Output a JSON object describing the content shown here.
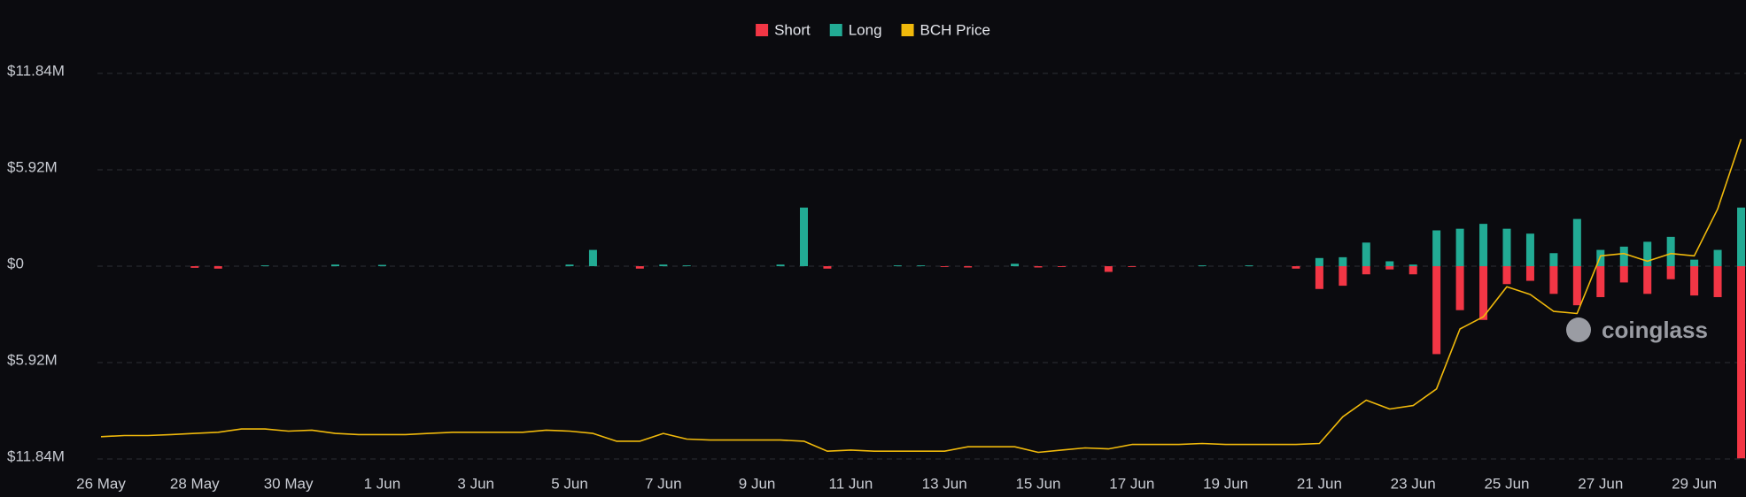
{
  "chart_data": {
    "type": "bar",
    "watermark": "coinglass",
    "categories": [
      "26 May",
      null,
      null,
      null,
      "28 May",
      null,
      null,
      null,
      "30 May",
      null,
      null,
      null,
      "1 Jun",
      null,
      null,
      null,
      "3 Jun",
      null,
      null,
      null,
      "5 Jun",
      null,
      null,
      null,
      "7 Jun",
      null,
      null,
      null,
      "9 Jun",
      null,
      null,
      null,
      "11 Jun",
      null,
      null,
      null,
      "13 Jun",
      null,
      null,
      null,
      "15 Jun",
      null,
      null,
      null,
      "17 Jun",
      null,
      null,
      null,
      "19 Jun",
      null,
      null,
      null,
      "21 Jun",
      null,
      null,
      null,
      "23 Jun",
      null,
      null,
      null,
      "25 Jun",
      null,
      null,
      null,
      "27 Jun",
      null,
      null,
      null,
      "29 Jun",
      null,
      null
    ],
    "series": [
      {
        "name": "Short",
        "color": "#f23645",
        "values": [
          0,
          0,
          0,
          0,
          -0.1,
          -0.15,
          0,
          0,
          0,
          0,
          0,
          0,
          0,
          0,
          0,
          0,
          0,
          0,
          0,
          0,
          0,
          0,
          0,
          -0.15,
          0,
          0,
          0,
          0,
          0,
          0,
          0,
          -0.15,
          0,
          0,
          0,
          0,
          -0.05,
          -0.08,
          0,
          0,
          -0.08,
          -0.05,
          0,
          -0.35,
          -0.05,
          0,
          0,
          0,
          0,
          0,
          0,
          -0.15,
          -1.4,
          -1.2,
          -0.5,
          -0.2,
          -0.5,
          -5.4,
          -2.7,
          -3.3,
          -1.1,
          -0.9,
          -1.7,
          -2.4,
          -1.9,
          -1.0,
          -1.7,
          -0.8,
          -1.8,
          -1.9,
          -11.8
        ]
      },
      {
        "name": "Long",
        "color": "#22ab94",
        "values": [
          0,
          0,
          0,
          0,
          0,
          0,
          0,
          0.05,
          0,
          0,
          0.1,
          0,
          0.08,
          0,
          0,
          0,
          0,
          0,
          0,
          0,
          0.1,
          1.0,
          0,
          0,
          0.1,
          0.05,
          0,
          0,
          0,
          0.1,
          3.6,
          0,
          0,
          0,
          0.05,
          0.05,
          0,
          0,
          0,
          0.15,
          0,
          0,
          0,
          0,
          0,
          0,
          0,
          0.05,
          0,
          0.05,
          0,
          0,
          0.5,
          0.55,
          1.45,
          0.3,
          0.1,
          2.2,
          2.3,
          2.6,
          2.3,
          2.0,
          0.8,
          2.9,
          1.0,
          1.2,
          1.5,
          1.8,
          0.4,
          1.0,
          3.6
        ]
      },
      {
        "name": "BCH Price",
        "color": "#f0b90b",
        "type": "line",
        "axis": "y2",
        "values": [
          109.5,
          110.2,
          110.2,
          110.8,
          111.5,
          112.2,
          114.2,
          114.2,
          112.9,
          113.5,
          111.5,
          110.8,
          110.8,
          110.8,
          111.5,
          112.2,
          112.2,
          112.2,
          112.2,
          113.5,
          112.9,
          111.5,
          106.8,
          106.8,
          111.5,
          108.1,
          107.5,
          107.5,
          107.5,
          107.5,
          106.8,
          100.7,
          101.4,
          100.7,
          100.7,
          100.7,
          100.7,
          103.4,
          103.4,
          103.4,
          100.0,
          101.4,
          102.7,
          102.1,
          104.8,
          104.8,
          104.8,
          105.4,
          104.8,
          104.8,
          104.8,
          104.8,
          105.4,
          121.6,
          131.7,
          126.3,
          128.4,
          138.5,
          174.9,
          182.3,
          200.5,
          195.8,
          185.6,
          184.3,
          219.3,
          220.7,
          216.0,
          220.7,
          219.3,
          247.7,
          290.1
        ]
      }
    ],
    "ylim": [
      -11.84,
      11.84
    ],
    "yticks": [
      {
        "value": 11.84,
        "label": "$11.84M"
      },
      {
        "value": 5.92,
        "label": "$5.92M"
      },
      {
        "value": 0,
        "label": "$0"
      },
      {
        "value": -5.92,
        "label": "$5.92M"
      },
      {
        "value": -11.84,
        "label": "$11.84M"
      }
    ],
    "y2lim": [
      96,
      330
    ],
    "grid": true,
    "legend": "top"
  }
}
